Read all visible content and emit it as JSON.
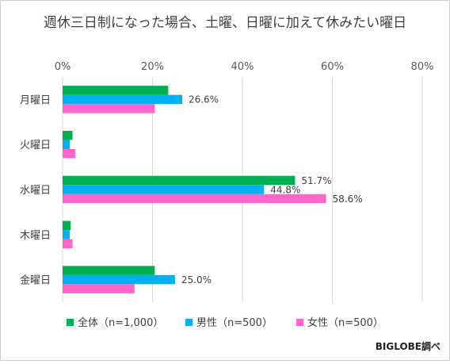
{
  "chart_data": {
    "type": "bar",
    "orientation": "horizontal",
    "title": "週休三日制になった場合、土曜、日曜に加えて休みたい曜日",
    "categories": [
      "月曜日",
      "火曜日",
      "水曜日",
      "木曜日",
      "金曜日"
    ],
    "x_ticks": [
      "0%",
      "20%",
      "40%",
      "60%",
      "80%"
    ],
    "xlim": [
      0,
      80
    ],
    "x_axis_position": "top",
    "grid": true,
    "legend_position": "bottom",
    "series": [
      {
        "name": "全体（n=1,000）",
        "color": "#00b050",
        "values": [
          23.5,
          2.2,
          51.7,
          1.8,
          20.5
        ],
        "labels": [
          "",
          "",
          "51.7%",
          "",
          ""
        ]
      },
      {
        "name": "男性（n=500）",
        "color": "#00b0f0",
        "values": [
          26.6,
          1.6,
          44.8,
          1.6,
          25.0
        ],
        "labels": [
          "26.6%",
          "",
          "44.8%",
          "",
          "25.0%"
        ]
      },
      {
        "name": "女性（n=500）",
        "color": "#ff66cc",
        "values": [
          20.5,
          2.8,
          58.6,
          2.2,
          16.0
        ],
        "labels": [
          "",
          "",
          "58.6%",
          "",
          ""
        ]
      }
    ]
  },
  "credit": "BIGLOBE調べ"
}
